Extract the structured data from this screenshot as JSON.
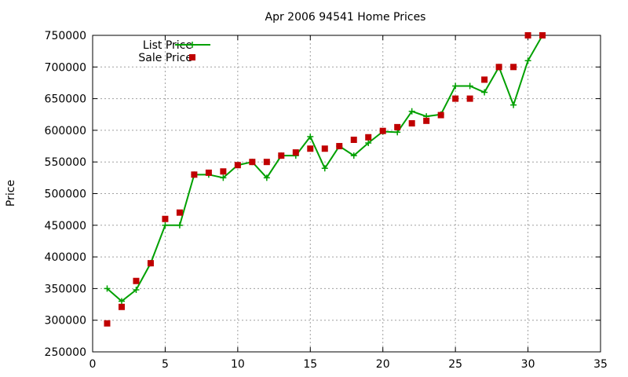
{
  "chart_data": {
    "type": "line",
    "title": "Apr 2006 94541 Home Prices",
    "xlabel": "",
    "ylabel": "Price",
    "xlim": [
      0,
      35
    ],
    "ylim": [
      250000,
      750000
    ],
    "xticks": [
      0,
      5,
      10,
      15,
      20,
      25,
      30,
      35
    ],
    "yticks": [
      250000,
      300000,
      350000,
      400000,
      450000,
      500000,
      550000,
      600000,
      650000,
      700000,
      750000
    ],
    "grid": true,
    "legend_position": "top-left",
    "series": [
      {
        "name": "List Price",
        "kind": "line-points",
        "color": "#00a000",
        "x": [
          1,
          2,
          3,
          4,
          5,
          6,
          7,
          8,
          9,
          10,
          11,
          12,
          13,
          14,
          15,
          16,
          17,
          18,
          19,
          20,
          21,
          22,
          23,
          24,
          25,
          26,
          27,
          28,
          29,
          30,
          31
        ],
        "y": [
          350000,
          330000,
          348000,
          390000,
          450000,
          450000,
          530000,
          530000,
          525000,
          545000,
          550000,
          525000,
          560000,
          560000,
          590000,
          540000,
          575000,
          560000,
          580000,
          598000,
          597000,
          630000,
          622000,
          625000,
          670000,
          670000,
          660000,
          700000,
          640000,
          710000,
          750000
        ]
      },
      {
        "name": "Sale Price",
        "kind": "points",
        "color": "#c00000",
        "x": [
          1,
          2,
          3,
          4,
          5,
          6,
          7,
          8,
          9,
          10,
          11,
          12,
          13,
          14,
          15,
          16,
          17,
          18,
          19,
          20,
          21,
          22,
          23,
          24,
          25,
          26,
          27,
          28,
          29,
          30,
          31
        ],
        "y": [
          295000,
          321000,
          362000,
          390000,
          460000,
          470000,
          530000,
          533000,
          535000,
          545000,
          550000,
          550000,
          560000,
          565000,
          571000,
          571000,
          575000,
          585000,
          589000,
          599000,
          605000,
          611000,
          615000,
          624000,
          650000,
          650000,
          680000,
          700000,
          700000,
          750000,
          750000
        ]
      }
    ]
  }
}
